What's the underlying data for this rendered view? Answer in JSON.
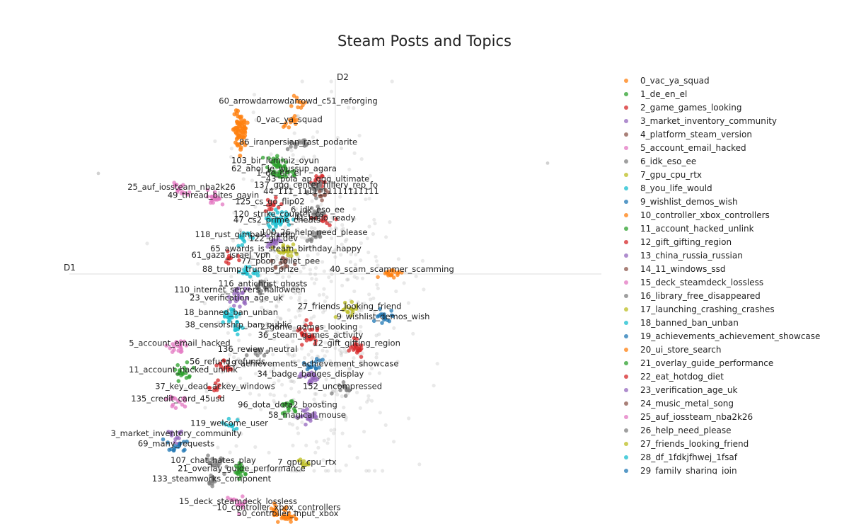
{
  "chart_data": {
    "type": "scatter",
    "title": "Steam Posts and Topics",
    "xlabel": "D1",
    "ylabel": "D2",
    "xlim": [
      -10,
      10
    ],
    "ylim": [
      -10,
      10
    ],
    "grid": false,
    "legend_placement": "right",
    "legend": [
      {
        "name": "0_vac_ya_squad",
        "color": "#ff7f0e"
      },
      {
        "name": "1_de_en_el",
        "color": "#2ca02c"
      },
      {
        "name": "2_game_games_looking",
        "color": "#d62728"
      },
      {
        "name": "3_market_inventory_community",
        "color": "#9467bd"
      },
      {
        "name": "4_platform_steam_version",
        "color": "#8c564b"
      },
      {
        "name": "5_account_email_hacked",
        "color": "#e377c2"
      },
      {
        "name": "6_idk_eso_ee",
        "color": "#7f7f7f"
      },
      {
        "name": "7_gpu_cpu_rtx",
        "color": "#bcbd22"
      },
      {
        "name": "8_you_life_would",
        "color": "#17becf"
      },
      {
        "name": "9_wishlist_demos_wish",
        "color": "#1f77b4"
      },
      {
        "name": "10_controller_xbox_controllers",
        "color": "#ff7f0e"
      },
      {
        "name": "11_account_hacked_unlink",
        "color": "#2ca02c"
      },
      {
        "name": "12_gift_gifting_region",
        "color": "#d62728"
      },
      {
        "name": "13_china_russia_russian",
        "color": "#9467bd"
      },
      {
        "name": "14_11_windows_ssd",
        "color": "#8c564b"
      },
      {
        "name": "15_deck_steamdeck_lossless",
        "color": "#e377c2"
      },
      {
        "name": "16_library_free_disappeared",
        "color": "#7f7f7f"
      },
      {
        "name": "17_launching_crashing_crashes",
        "color": "#bcbd22"
      },
      {
        "name": "18_banned_ban_unban",
        "color": "#17becf"
      },
      {
        "name": "19_achievements_achievement_showcase",
        "color": "#1f77b4"
      },
      {
        "name": "20_ui_store_search",
        "color": "#ff7f0e"
      },
      {
        "name": "21_overlay_guide_performance",
        "color": "#2ca02c"
      },
      {
        "name": "22_eat_hotdog_diet",
        "color": "#d62728"
      },
      {
        "name": "23_verification_age_uk",
        "color": "#9467bd"
      },
      {
        "name": "24_music_metal_song",
        "color": "#8c564b"
      },
      {
        "name": "25_auf_iossteam_nba2k26",
        "color": "#e377c2"
      },
      {
        "name": "26_help_need_please",
        "color": "#7f7f7f"
      },
      {
        "name": "27_friends_looking_friend",
        "color": "#bcbd22"
      },
      {
        "name": "28_df_1fdkjfhwej_1fsaf",
        "color": "#17becf"
      },
      {
        "name": "29_family_sharing_join",
        "color": "#1f77b4"
      }
    ],
    "topic_labels": [
      {
        "text": "60_arrowdarrowdarrowd_c51_reforging",
        "x": -2.1,
        "y": 8.3,
        "color": "#ff7f0e"
      },
      {
        "text": "0_vac_ya_squad",
        "x": -2.6,
        "y": 7.4,
        "color": "#ff7f0e"
      },
      {
        "text": "86_iranpersian_rast_podarite",
        "x": -2.1,
        "y": 6.3,
        "color": "#7f7f7f"
      },
      {
        "text": "103_bir_leminiz_oyun",
        "x": -3.4,
        "y": 5.4,
        "color": "#2ca02c"
      },
      {
        "text": "62_ahoj_je_wussup_agara",
        "x": -2.9,
        "y": 5.0,
        "color": "#2ca02c"
      },
      {
        "text": "1_de_en_el",
        "x": -3.2,
        "y": 4.8,
        "color": "#2ca02c"
      },
      {
        "text": "43_pola_ap_ggg_ultimate",
        "x": -1.0,
        "y": 4.5,
        "color": "#d62728"
      },
      {
        "text": "25_auf_iossteam_nba2k26",
        "x": -8.7,
        "y": 4.1,
        "color": "#e377c2"
      },
      {
        "text": "49_thread_bites_gavin",
        "x": -6.9,
        "y": 3.7,
        "color": "#e377c2"
      },
      {
        "text": "137_ggg_center_hillery_rep_fo",
        "x": -1.1,
        "y": 4.2,
        "color": "#7f7f7f"
      },
      {
        "text": "44_111_1111_11111111111",
        "x": -0.8,
        "y": 3.9,
        "color": "#8c564b"
      },
      {
        "text": "125_cs_go_flip02",
        "x": -3.7,
        "y": 3.4,
        "color": "#d62728"
      },
      {
        "text": "6_idk_eso_ee",
        "x": -1.0,
        "y": 3.0,
        "color": "#7f7f7f"
      },
      {
        "text": "120_strike_counter_cs",
        "x": -3.2,
        "y": 2.8,
        "color": "#17becf"
      },
      {
        "text": "47_cs2_prime_cheats",
        "x": -3.3,
        "y": 2.5,
        "color": "#17becf"
      },
      {
        "text": "41_hello_ready",
        "x": -0.6,
        "y": 2.6,
        "color": "#d62728"
      },
      {
        "text": "118_rust_gimbals_trump",
        "x": -5.1,
        "y": 1.8,
        "color": "#17becf"
      },
      {
        "text": "100_26_help_need_please",
        "x": -1.2,
        "y": 1.9,
        "color": "#7f7f7f"
      },
      {
        "text": "122_gif_dev",
        "x": -3.5,
        "y": 1.6,
        "color": "#9467bd"
      },
      {
        "text": "65_awards_is_steam_birthday_happy",
        "x": -2.8,
        "y": 1.1,
        "color": "#bcbd22"
      },
      {
        "text": "61_gaza_israel_vpn",
        "x": -5.9,
        "y": 0.8,
        "color": "#d62728"
      },
      {
        "text": "77_poop_toilet_pee",
        "x": -3.1,
        "y": 0.5,
        "color": "#8c564b"
      },
      {
        "text": "88_trump_trumps_prize",
        "x": -4.8,
        "y": 0.1,
        "color": "#17becf"
      },
      {
        "text": "40_scam_scammer_scamming",
        "x": 3.2,
        "y": 0.1,
        "color": "#ff7f0e"
      },
      {
        "text": "116_antichrist_ghosts",
        "x": -4.1,
        "y": -0.6,
        "color": "#7f7f7f"
      },
      {
        "text": "110_internet_servers_halloween",
        "x": -5.4,
        "y": -0.9,
        "color": "#9467bd"
      },
      {
        "text": "23_verification_age_uk",
        "x": -5.6,
        "y": -1.3,
        "color": "#9467bd"
      },
      {
        "text": "27_friends_looking_friend",
        "x": 0.8,
        "y": -1.7,
        "color": "#bcbd22"
      },
      {
        "text": "9_wishlist_demos_wish",
        "x": 2.7,
        "y": -2.2,
        "color": "#1f77b4"
      },
      {
        "text": "18_banned_ban_unban",
        "x": -5.9,
        "y": -2.0,
        "color": "#17becf"
      },
      {
        "text": "38_censorship_ban_public",
        "x": -5.5,
        "y": -2.6,
        "color": "#17becf"
      },
      {
        "text": "2_game_games_looking",
        "x": -1.5,
        "y": -2.7,
        "color": "#d62728"
      },
      {
        "text": "36_steam_games_activity",
        "x": -1.4,
        "y": -3.1,
        "color": "#d62728"
      },
      {
        "text": "5_account_email_hacked",
        "x": -8.8,
        "y": -3.5,
        "color": "#e377c2"
      },
      {
        "text": "12_gift_gifting_region",
        "x": 1.2,
        "y": -3.5,
        "color": "#d62728"
      },
      {
        "text": "136_review_neutral",
        "x": -4.4,
        "y": -3.8,
        "color": "#7f7f7f"
      },
      {
        "text": "56_refund_refunds",
        "x": -6.1,
        "y": -4.4,
        "color": "#d62728"
      },
      {
        "text": "19_achievements_achievement_showcase",
        "x": -1.3,
        "y": -4.5,
        "color": "#1f77b4"
      },
      {
        "text": "11_account_hacked_unlink",
        "x": -8.6,
        "y": -4.8,
        "color": "#2ca02c"
      },
      {
        "text": "34_badge_badges_display",
        "x": -1.4,
        "y": -5.0,
        "color": "#9467bd"
      },
      {
        "text": "37_key_dead_ackey_windows",
        "x": -6.8,
        "y": -5.6,
        "color": "#d62728"
      },
      {
        "text": "152_uncompressed",
        "x": 0.4,
        "y": -5.6,
        "color": "#7f7f7f"
      },
      {
        "text": "135_credit_card_45usd",
        "x": -8.9,
        "y": -6.2,
        "color": "#e377c2"
      },
      {
        "text": "96_dota_dota2_boosting",
        "x": -2.7,
        "y": -6.5,
        "color": "#2ca02c"
      },
      {
        "text": "58_magical_mouse",
        "x": -1.6,
        "y": -7.0,
        "color": "#9467bd"
      },
      {
        "text": "119_welcome_user",
        "x": -6.0,
        "y": -7.4,
        "color": "#17becf"
      },
      {
        "text": "3_market_inventory_community",
        "x": -9.0,
        "y": -7.9,
        "color": "#9467bd"
      },
      {
        "text": "69_many_requests",
        "x": -9.0,
        "y": -8.4,
        "color": "#1f77b4"
      },
      {
        "text": "107_chat_hates_play",
        "x": -6.9,
        "y": -9.2,
        "color": "#7f7f7f"
      },
      {
        "text": "21_overlay_guide_performance",
        "x": -5.3,
        "y": -9.6,
        "color": "#2ca02c"
      },
      {
        "text": "7_gpu_cpu_rtx",
        "x": -1.6,
        "y": -9.3,
        "color": "#bcbd22"
      },
      {
        "text": "133_steamworks_component",
        "x": -7.0,
        "y": -10.1,
        "color": "#7f7f7f"
      },
      {
        "text": "15_deck_steamdeck_lossless",
        "x": -5.5,
        "y": -11.2,
        "color": "#e377c2"
      },
      {
        "text": "10_controller_xbox_controllers",
        "x": -3.2,
        "y": -11.5,
        "color": "#ff7f0e"
      },
      {
        "text": "50_controller_input_xbox",
        "x": -2.7,
        "y": -11.8,
        "color": "#ff7f0e"
      }
    ]
  }
}
